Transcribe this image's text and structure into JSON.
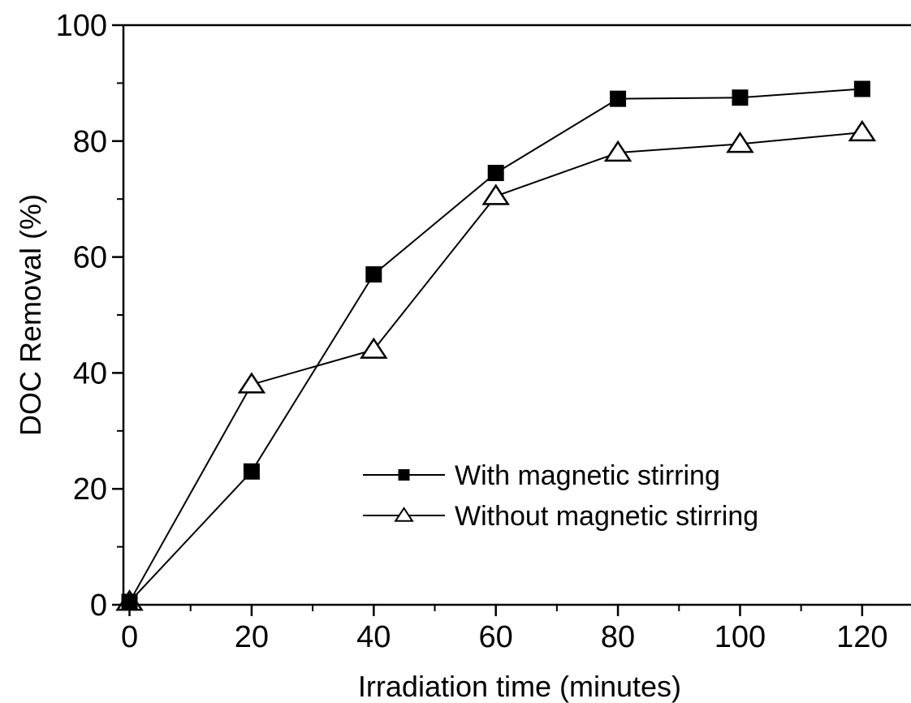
{
  "chart_data": {
    "type": "line",
    "title": "",
    "xlabel": "Irradiation time (minutes)",
    "ylabel": "DOC Removal (%)",
    "xlim": [
      -1,
      128
    ],
    "ylim": [
      0,
      100
    ],
    "x_ticks": [
      0,
      20,
      40,
      60,
      80,
      100,
      120
    ],
    "y_ticks": [
      0,
      20,
      40,
      60,
      80,
      100
    ],
    "x": [
      0,
      20,
      40,
      60,
      80,
      100,
      120
    ],
    "series": [
      {
        "name": "With magnetic stirring",
        "marker": "filled-square",
        "color": "#000000",
        "values": [
          0.5,
          23,
          57,
          74.5,
          87.3,
          87.5,
          89
        ]
      },
      {
        "name": "Without magnetic stirring",
        "marker": "open-triangle",
        "color": "#000000",
        "values": [
          0.5,
          38,
          44,
          70.5,
          78,
          79.5,
          81.5
        ]
      }
    ],
    "legend_position": "bottom-right",
    "grid": false
  }
}
